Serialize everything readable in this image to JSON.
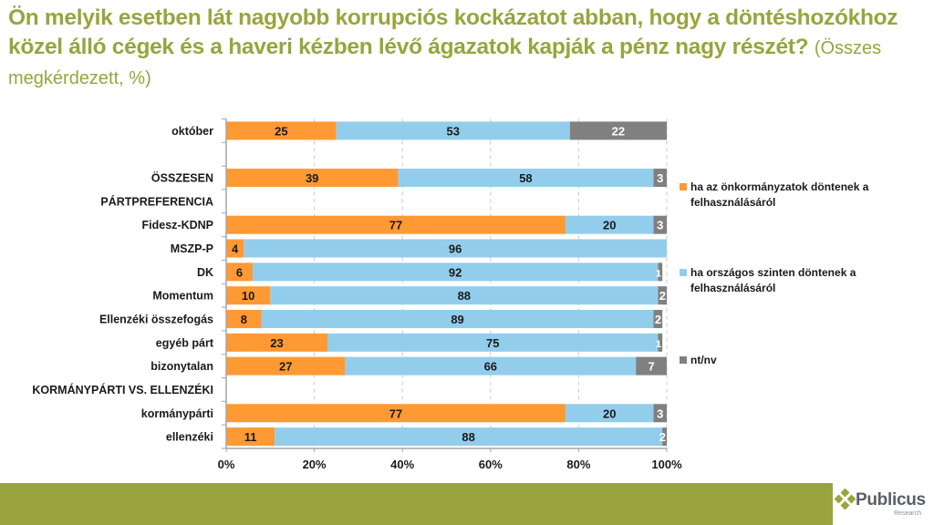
{
  "page": {
    "title_bold": "Ön melyik esetben lát nagyobb korrupciós kockázatot abban, hogy a döntéshozókhoz közel álló cégek és a haveri kézben lévő ágazatok kapják a pénz nagy részét?",
    "title_sub": "(Összes megkérdezett, %)"
  },
  "logo": {
    "name": "Publicus",
    "sub": "Research",
    "icon": "diamond-cluster-icon",
    "color": "#99a43e"
  },
  "colors": {
    "orange": "#ff9933",
    "blue": "#93cdec",
    "grey": "#808080",
    "accent": "#99a43e"
  },
  "chart_data": {
    "type": "bar",
    "orientation": "horizontal",
    "stacked": "percent",
    "title": "Ön melyik esetben lát nagyobb korrupciós kockázatot abban, hogy a döntéshozókhoz közel álló cégek és a haveri kézben lévő ágazatok kapják a pénz nagy részét? (Összes megkérdezett, %)",
    "xlabel": "",
    "ylabel": "",
    "xlim": [
      0,
      100
    ],
    "x_ticks": [
      "0%",
      "20%",
      "40%",
      "60%",
      "80%",
      "100%"
    ],
    "grid": "vertical dashed",
    "legend_position": "right",
    "categories": [
      "október",
      "",
      "ÖSSZESEN",
      "PÁRTPREFERENCIA",
      "Fidesz-KDNP",
      "MSZP-P",
      "DK",
      "Momentum",
      "Ellenzéki összefogás",
      "egyéb párt",
      "bizonytalan",
      "KORMÁNYPÁRTI VS. ELLENZÉKI",
      "kormánypárti",
      "ellenzéki"
    ],
    "series": [
      {
        "name": "ha az önkormányzatok döntenek a felhasználásáról",
        "color": "#ff9933",
        "label_color": "#1a1a1a",
        "values": [
          25,
          null,
          39,
          null,
          77,
          4,
          6,
          10,
          8,
          23,
          27,
          null,
          77,
          11
        ]
      },
      {
        "name": "ha országos szinten döntenek a felhasználásáról",
        "color": "#93cdec",
        "label_color": "#1a1a1a",
        "values": [
          53,
          null,
          58,
          null,
          20,
          96,
          92,
          88,
          89,
          75,
          66,
          null,
          20,
          88
        ]
      },
      {
        "name": "nt/nv",
        "color": "#808080",
        "label_color": "#ffffff",
        "values": [
          22,
          null,
          3,
          null,
          3,
          null,
          1,
          2,
          2,
          1,
          7,
          null,
          3,
          2
        ]
      }
    ]
  }
}
